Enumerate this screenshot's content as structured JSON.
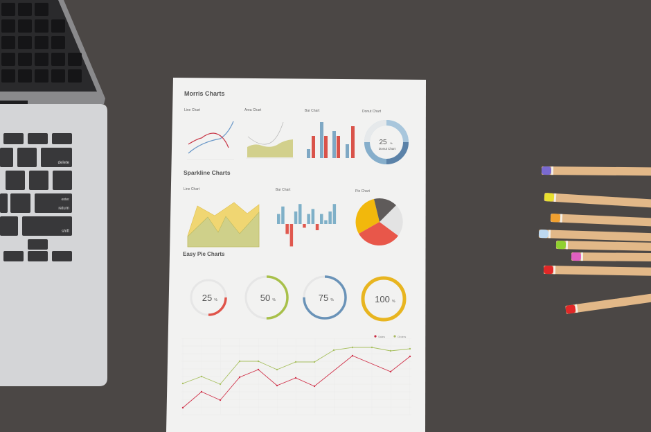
{
  "paper": {
    "morris_title": "Morris Charts",
    "morris_labels": [
      "Line Chart",
      "Area Chart",
      "Bar Chart",
      "Donut Chart"
    ],
    "donut_value": "25",
    "donut_unit": "%",
    "donut_caption": "Donut Chart",
    "sparkline_title": "Sparkline Charts",
    "sparkline_labels": [
      "Line Chart",
      "Bar Chart",
      "Pie Chart"
    ],
    "easy_pie_title": "Easy Pie Charts",
    "easy_pies": [
      {
        "value": "25",
        "unit": "%",
        "percent": 25,
        "color": "#e0544a"
      },
      {
        "value": "50",
        "unit": "%",
        "percent": 50,
        "color": "#a8c04a"
      },
      {
        "value": "75",
        "unit": "%",
        "percent": 75,
        "color": "#6a93b8"
      },
      {
        "value": "100",
        "unit": "%",
        "percent": 100,
        "color": "#e8b520"
      }
    ],
    "legend": [
      {
        "label": "Sales",
        "color": "#c8283f"
      },
      {
        "label": "Orders",
        "color": "#a8b860"
      }
    ]
  },
  "laptop": {
    "keys": {
      "delete": "delete",
      "enter": "enter",
      "return": "return",
      "shift": "shift"
    }
  },
  "colors": {
    "desk": "#4b4745",
    "paper": "#f3f3f2",
    "red": "#d9534a",
    "blue": "#7fa8c4",
    "yellow": "#f0d060",
    "green": "#c8cc70"
  }
}
